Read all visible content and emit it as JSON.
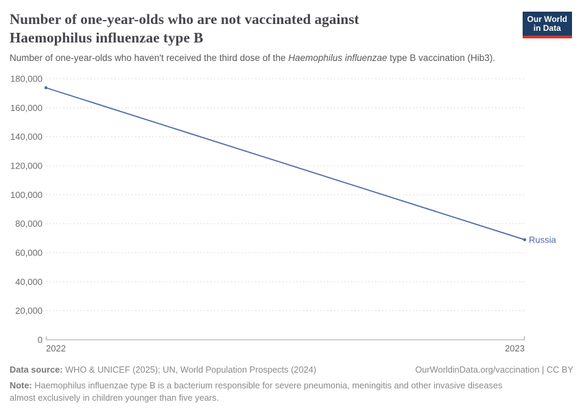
{
  "header": {
    "title": "Number of one-year-olds who are not vaccinated against Haemophilus influenzae type B",
    "logo": {
      "line1": "Our World",
      "line2": "in Data"
    }
  },
  "subtitle": {
    "prefix": "Number of one-year-olds who haven't received the third dose of the ",
    "italic": "Haemophilus influenzae",
    "suffix": " type B vaccination (Hib3)."
  },
  "chart_data": {
    "type": "line",
    "title": "Number of one-year-olds who are not vaccinated against Haemophilus influenzae type B",
    "x": [
      2022,
      2023
    ],
    "x_tick_labels": [
      "2022",
      "2023"
    ],
    "series": [
      {
        "name": "Russia",
        "values": [
          173800,
          69000
        ],
        "color": "#4d6aa5"
      }
    ],
    "ylim": [
      0,
      180000
    ],
    "ytick_step": 20000,
    "xlabel": "",
    "ylabel": "",
    "grid": "horizontal-dashed",
    "legend_position": "end-of-line-label"
  },
  "footer": {
    "source_label": "Data source:",
    "source_text": " WHO & UNICEF (2025); UN, World Population Prospects (2024)",
    "rights": "OurWorldinData.org/vaccination | CC BY",
    "note_label": "Note:",
    "note_text": " Haemophilus influenzae type B is a bacterium responsible for severe pneumonia, meningitis and other invasive diseases almost exclusively in children younger than five years."
  },
  "colors": {
    "title": "#44444c",
    "subtitle": "#595959",
    "axis_label": "#6b6b6b",
    "gridline": "#dddddd",
    "axis_line": "#a3a3a3",
    "series_line": "#4d6aa5",
    "logo_bg": "#1d3d63",
    "logo_accent": "#d8352e",
    "footer_text": "#8a8a8a"
  }
}
